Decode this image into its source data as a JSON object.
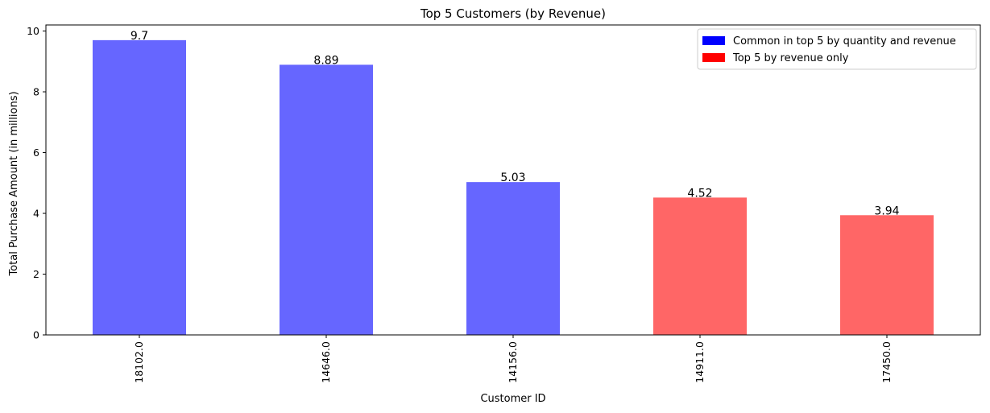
{
  "chart_data": {
    "type": "bar",
    "title": "Top 5 Customers (by Revenue)",
    "xlabel": "Customer ID",
    "ylabel": "Total Purchase Amount (in millions)",
    "categories": [
      "18102.0",
      "14646.0",
      "14156.0",
      "14911.0",
      "17450.0"
    ],
    "values": [
      9.7,
      8.89,
      5.03,
      4.52,
      3.94
    ],
    "value_labels": [
      "9.7",
      "8.89",
      "5.03",
      "4.52",
      "3.94"
    ],
    "groups": [
      "common",
      "common",
      "common",
      "revenue_only",
      "revenue_only"
    ],
    "ylim": [
      0,
      10.2
    ],
    "yticks": [
      0,
      2,
      4,
      6,
      8,
      10
    ],
    "ytick_labels": [
      "0",
      "2",
      "4",
      "6",
      "8",
      "10"
    ],
    "grid": false,
    "legend": {
      "placement": "top-right",
      "entries": [
        {
          "key": "common",
          "label": "Common in top 5 by quantity and revenue",
          "color": "#0000ff"
        },
        {
          "key": "revenue_only",
          "label": "Top 5 by revenue only",
          "color": "#ff0000"
        }
      ]
    },
    "bar_colors": {
      "common": "#6666ff",
      "revenue_only": "#ff6666"
    }
  }
}
